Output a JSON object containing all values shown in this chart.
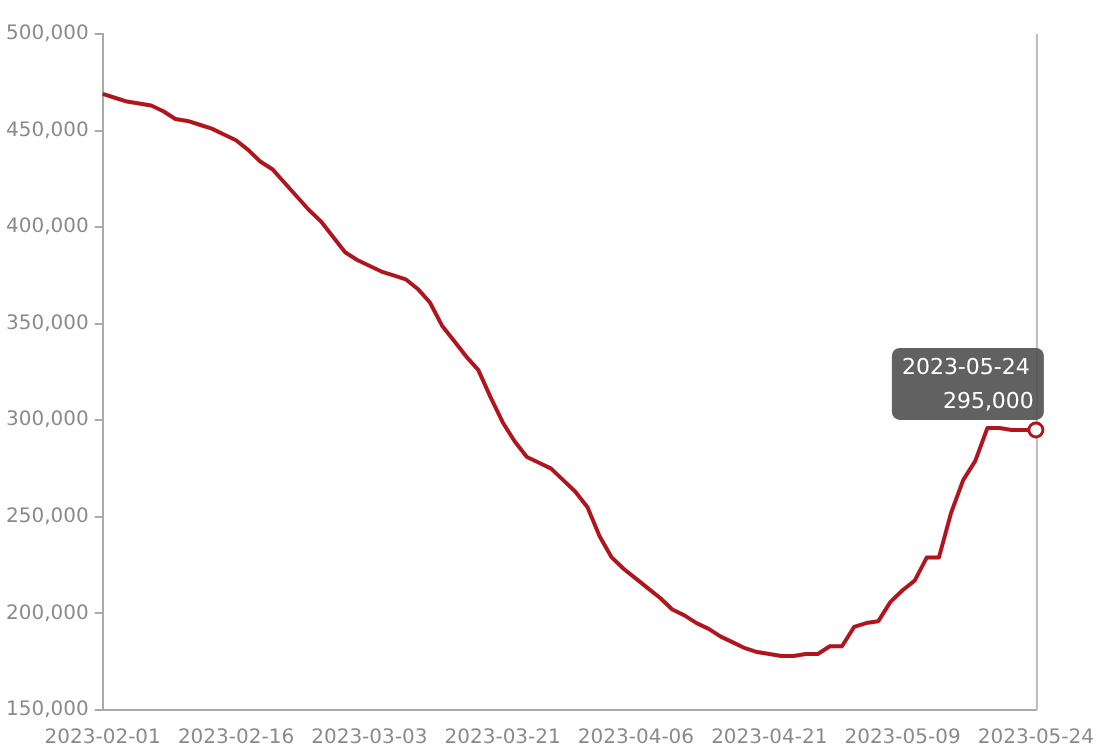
{
  "chart_data": {
    "type": "line",
    "categories": [
      "2023-02-01",
      null,
      null,
      null,
      null,
      null,
      null,
      null,
      null,
      null,
      null,
      "2023-02-16",
      null,
      null,
      null,
      null,
      null,
      null,
      null,
      null,
      null,
      null,
      "2023-03-03",
      null,
      null,
      null,
      null,
      null,
      null,
      null,
      null,
      null,
      null,
      "2023-03-21",
      null,
      null,
      null,
      null,
      null,
      null,
      null,
      null,
      null,
      null,
      "2023-04-06",
      null,
      null,
      null,
      null,
      null,
      null,
      null,
      null,
      null,
      null,
      "2023-04-21",
      null,
      null,
      null,
      null,
      null,
      null,
      null,
      null,
      null,
      null,
      "2023-05-09",
      null,
      null,
      null,
      null,
      null,
      null,
      null,
      null,
      null,
      null,
      "2023-05-24"
    ],
    "series": [
      {
        "color": "#b0141c",
        "values": [
          469000,
          467000,
          465000,
          464000,
          463000,
          460000,
          456000,
          455000,
          453000,
          451000,
          448000,
          445000,
          440000,
          434000,
          430000,
          423000,
          416000,
          409000,
          403000,
          395000,
          387000,
          383000,
          380000,
          377000,
          375000,
          373000,
          368000,
          361000,
          349000,
          341000,
          333000,
          326000,
          312000,
          299000,
          289000,
          281000,
          278000,
          275000,
          269000,
          263000,
          255000,
          240000,
          229000,
          223000,
          218000,
          213000,
          208000,
          202000,
          199000,
          195000,
          192000,
          188000,
          185000,
          182000,
          180000,
          179000,
          178000,
          178000,
          179000,
          179000,
          183000,
          183000,
          193000,
          195000,
          196000,
          206000,
          212000,
          217000,
          229000,
          229000,
          252000,
          269000,
          279000,
          296000,
          296000,
          295000,
          295000,
          295000
        ]
      }
    ],
    "ylim": [
      150000,
      500000
    ],
    "yticks": [
      {
        "value": 150000,
        "label": "150,000"
      },
      {
        "value": 200000,
        "label": "200,000"
      },
      {
        "value": 250000,
        "label": "250,000"
      },
      {
        "value": 300000,
        "label": "300,000"
      },
      {
        "value": 350000,
        "label": "350,000"
      },
      {
        "value": 400000,
        "label": "400,000"
      },
      {
        "value": 450000,
        "label": "450,000"
      },
      {
        "value": 500000,
        "label": "500,000"
      }
    ],
    "grid": false,
    "marker": "none",
    "line_style": "solid",
    "annotations": [
      {
        "text": "295,000",
        "x": "2023-05-24",
        "y": 295000
      }
    ]
  }
}
